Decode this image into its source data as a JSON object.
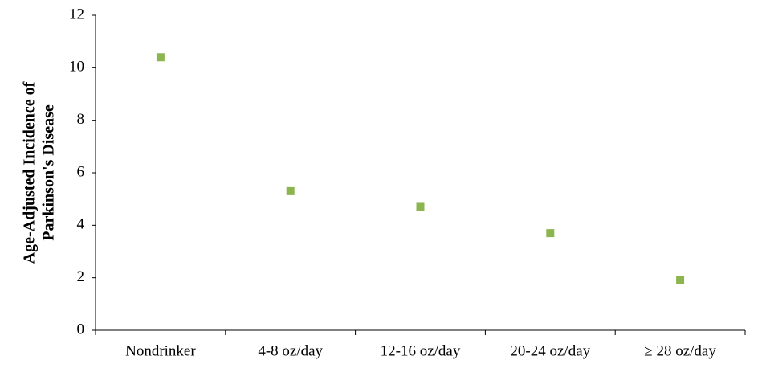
{
  "chart_data": {
    "type": "scatter",
    "ylabel": [
      "Age-Adjusted Incidence of",
      "Parkinson's Disease"
    ],
    "categories": [
      "Nondrinker",
      "4-8 oz/day",
      "12-16 oz/day",
      "20-24 oz/day",
      "≥ 28 oz/day"
    ],
    "values": [
      10.4,
      5.3,
      4.7,
      3.7,
      1.9
    ],
    "color": "#8db54f",
    "marker": "square",
    "ylim": [
      0,
      12
    ],
    "yticks": [
      0,
      2,
      4,
      6,
      8,
      10,
      12
    ],
    "grid": false
  }
}
